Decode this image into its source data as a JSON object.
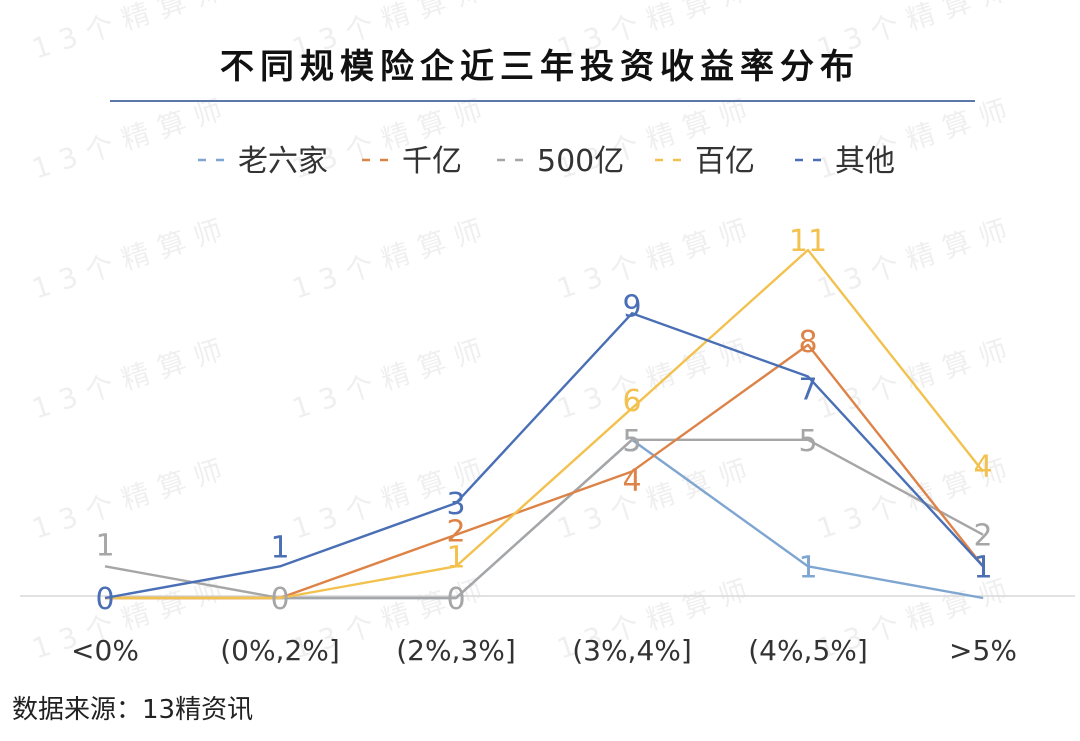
{
  "colors": {
    "老六家": "#7ea6d1",
    "千亿": "#dd8347",
    "500亿": "#a6a6a6",
    "百亿": "#f2c14e",
    "其他": "#4a6fb5",
    "title_rule": "#5b78ab",
    "axis": "#d9d9d9"
  },
  "watermark": "13个精算师",
  "source": "数据来源：13精资讯",
  "chart_data": {
    "type": "line",
    "title": "不同规模险企近三年投资收益率分布",
    "categories": [
      "<0%",
      "(0%,2%]",
      "(2%,3%]",
      "(3%,4%]",
      "(4%,5%]",
      ">5%"
    ],
    "series": [
      {
        "name": "老六家",
        "values": [
          0,
          0,
          0,
          5,
          1,
          0
        ]
      },
      {
        "name": "千亿",
        "values": [
          0,
          0,
          2,
          4,
          8,
          1
        ]
      },
      {
        "name": "500亿",
        "values": [
          1,
          0,
          0,
          5,
          5,
          2
        ]
      },
      {
        "name": "百亿",
        "values": [
          0,
          0,
          1,
          6,
          11,
          4
        ]
      },
      {
        "name": "其他",
        "values": [
          0,
          1,
          3,
          9,
          7,
          1
        ]
      }
    ],
    "ylim": [
      0,
      11.5
    ],
    "grid": false,
    "legend_position": "top",
    "line_style": "solid"
  }
}
